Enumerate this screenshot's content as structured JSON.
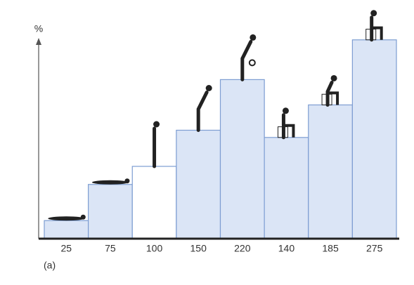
{
  "chart_data": {
    "type": "bar",
    "y_label": "%",
    "panel_label": "(a)",
    "values": [
      25,
      75,
      100,
      150,
      220,
      140,
      185,
      275
    ],
    "colors": [
      "#dbe5f6",
      "#dbe5f6",
      "#ffffff",
      "#dbe5f6",
      "#dbe5f6",
      "#dbe5f6",
      "#dbe5f6",
      "#dbe5f6"
    ],
    "edge_color": "#7d9dd2",
    "ylim": [
      0,
      300
    ]
  }
}
